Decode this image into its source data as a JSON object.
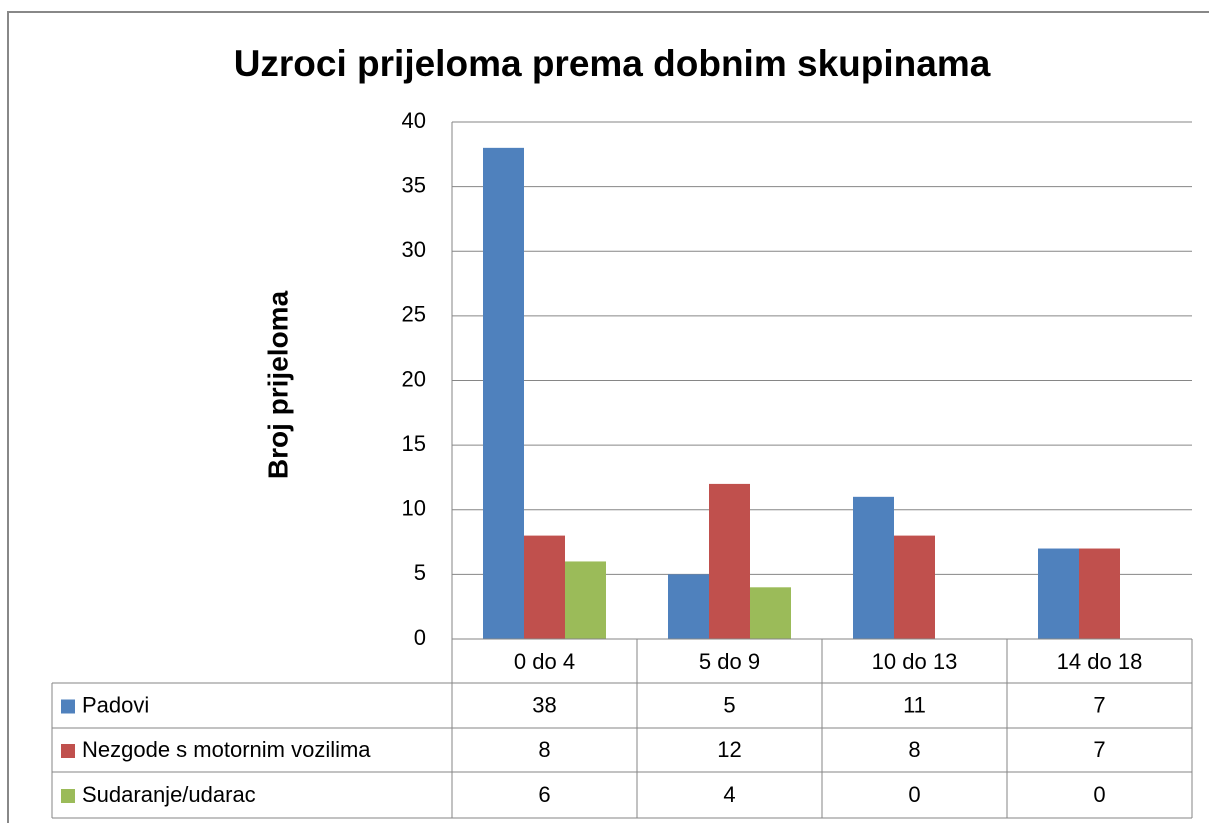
{
  "chart_data": {
    "type": "bar",
    "title": "Uzroci prijeloma prema dobnim skupinama",
    "y_label": "Broj prijeloma",
    "categories": [
      "0 do 4",
      "5 do 9",
      "10 do 13",
      "14 do 18"
    ],
    "series": [
      {
        "name": "Padovi",
        "color": "#4f81bd",
        "values": [
          38,
          5,
          11,
          7
        ]
      },
      {
        "name": "Nezgode s motornim vozilima",
        "color": "#c0504d",
        "values": [
          8,
          12,
          8,
          7
        ]
      },
      {
        "name": "Sudaranje/udarac",
        "color": "#9bbb59",
        "values": [
          6,
          4,
          0,
          0
        ]
      }
    ],
    "ylim": [
      0,
      40
    ],
    "yticks": [
      0,
      5,
      10,
      15,
      20,
      25,
      30,
      35,
      40
    ],
    "grid": true,
    "data_table": true
  }
}
